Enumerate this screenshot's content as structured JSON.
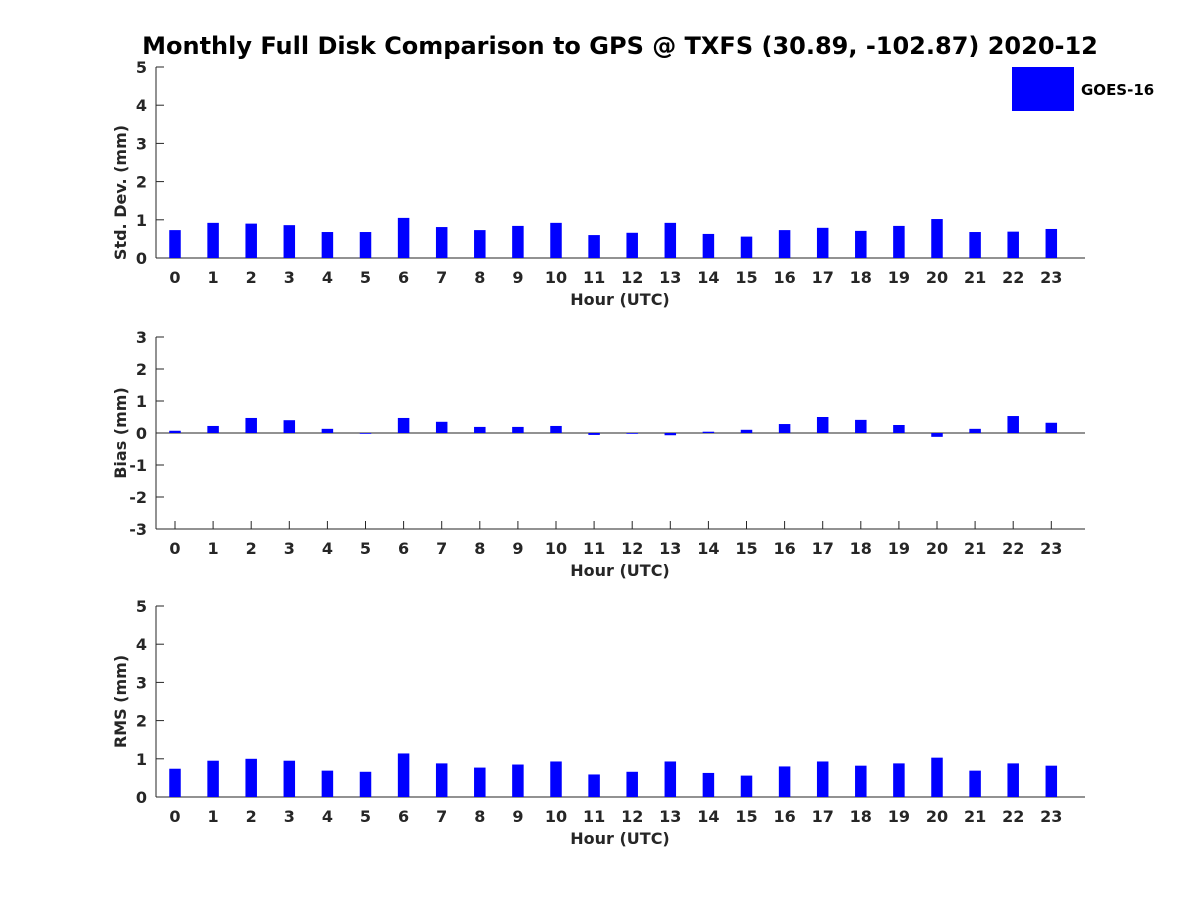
{
  "title": "Monthly Full Disk Comparison to GPS @ TXFS (30.89, -102.87) 2020-12",
  "legend": {
    "label": "GOES-16",
    "color": "#0000ff",
    "placement": "top-right"
  },
  "colors": {
    "bar": "#0000ff",
    "axis": "#262626"
  },
  "chart_data": [
    {
      "type": "bar",
      "categories": [
        "0",
        "1",
        "2",
        "3",
        "4",
        "5",
        "6",
        "7",
        "8",
        "9",
        "10",
        "11",
        "12",
        "13",
        "14",
        "15",
        "16",
        "17",
        "18",
        "19",
        "20",
        "21",
        "22",
        "23"
      ],
      "series": [
        {
          "name": "GOES-16",
          "values": [
            0.73,
            0.92,
            0.9,
            0.86,
            0.68,
            0.68,
            1.05,
            0.81,
            0.73,
            0.84,
            0.92,
            0.6,
            0.66,
            0.92,
            0.63,
            0.56,
            0.73,
            0.79,
            0.71,
            0.84,
            1.02,
            0.68,
            0.69,
            0.76
          ]
        }
      ],
      "xlabel": "Hour (UTC)",
      "ylabel": "Std. Dev. (mm)",
      "ylim": [
        0,
        5
      ],
      "yticks": [
        "0",
        "1",
        "2",
        "3",
        "4",
        "5"
      ]
    },
    {
      "type": "bar",
      "categories": [
        "0",
        "1",
        "2",
        "3",
        "4",
        "5",
        "6",
        "7",
        "8",
        "9",
        "10",
        "11",
        "12",
        "13",
        "14",
        "15",
        "16",
        "17",
        "18",
        "19",
        "20",
        "21",
        "22",
        "23"
      ],
      "series": [
        {
          "name": "GOES-16",
          "values": [
            0.07,
            0.22,
            0.47,
            0.4,
            0.13,
            -0.02,
            0.47,
            0.35,
            0.19,
            0.19,
            0.22,
            -0.06,
            -0.02,
            -0.07,
            0.04,
            0.1,
            0.28,
            0.5,
            0.41,
            0.25,
            -0.12,
            0.13,
            0.53,
            0.32
          ]
        }
      ],
      "xlabel": "Hour (UTC)",
      "ylabel": "Bias (mm)",
      "ylim": [
        -3,
        3
      ],
      "yticks": [
        "-3",
        "-2",
        "-1",
        "0",
        "1",
        "2",
        "3"
      ]
    },
    {
      "type": "bar",
      "categories": [
        "0",
        "1",
        "2",
        "3",
        "4",
        "5",
        "6",
        "7",
        "8",
        "9",
        "10",
        "11",
        "12",
        "13",
        "14",
        "15",
        "16",
        "17",
        "18",
        "19",
        "20",
        "21",
        "22",
        "23"
      ],
      "series": [
        {
          "name": "GOES-16",
          "values": [
            0.74,
            0.95,
            1.0,
            0.95,
            0.69,
            0.66,
            1.14,
            0.88,
            0.77,
            0.85,
            0.93,
            0.59,
            0.66,
            0.93,
            0.63,
            0.56,
            0.8,
            0.93,
            0.82,
            0.88,
            1.03,
            0.69,
            0.88,
            0.82
          ]
        }
      ],
      "xlabel": "Hour (UTC)",
      "ylabel": "RMS (mm)",
      "ylim": [
        0,
        5
      ],
      "yticks": [
        "0",
        "1",
        "2",
        "3",
        "4",
        "5"
      ]
    }
  ]
}
